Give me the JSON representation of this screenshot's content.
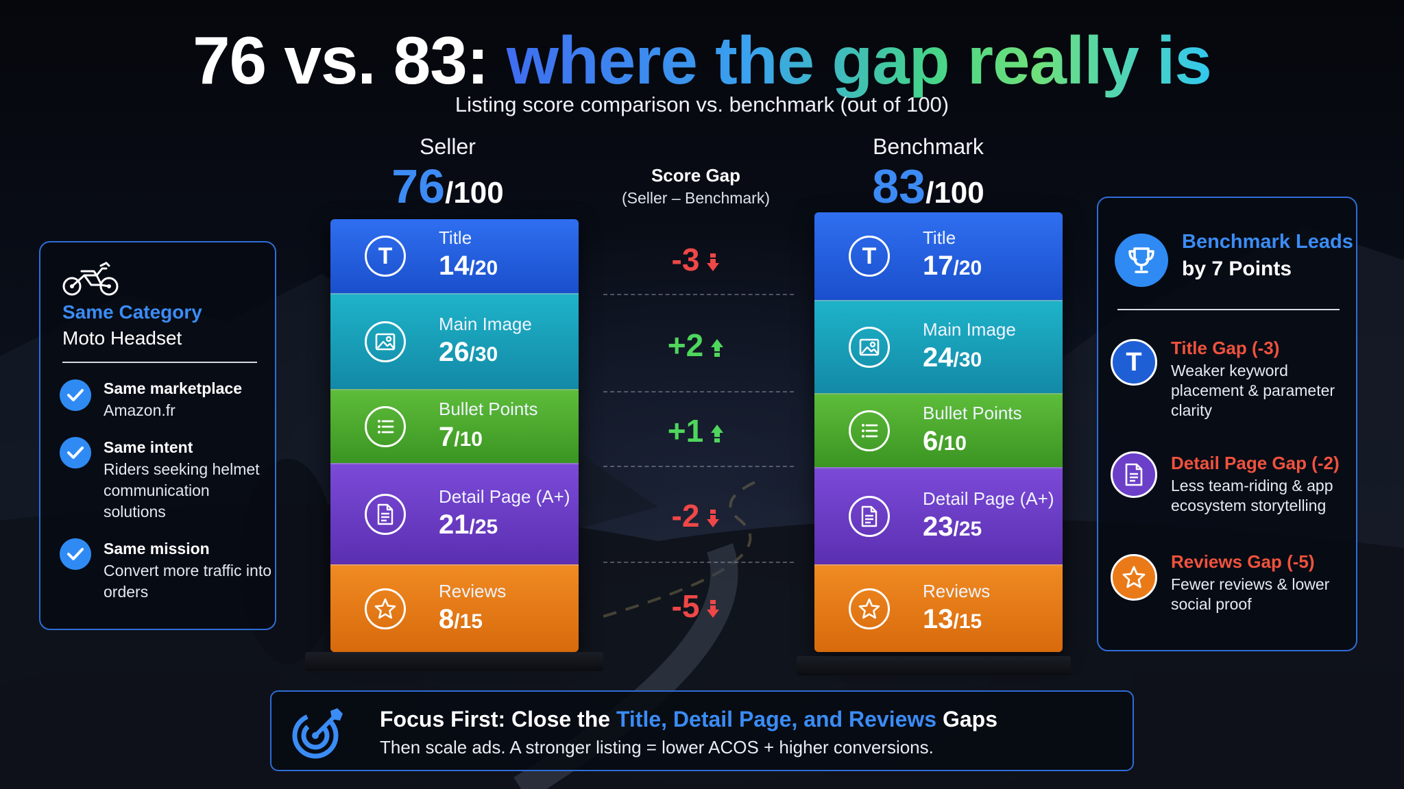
{
  "header": {
    "title_part1": "76 vs. 83:",
    "title_part2": "where the gap really is",
    "subtitle": "Listing score comparison vs. benchmark (out of 100)"
  },
  "seller": {
    "name": "Seller",
    "score": "76",
    "denominator": "/100"
  },
  "benchmark": {
    "name": "Benchmark",
    "score": "83",
    "denominator": "/100"
  },
  "gap_header": {
    "title": "Score Gap",
    "subtitle": "(Seller – Benchmark)"
  },
  "chart_data": {
    "type": "bar",
    "title": "76 vs. 83: where the gap really is",
    "subtitle": "Listing score comparison vs. benchmark (out of 100)",
    "categories": [
      "Title",
      "Main Image",
      "Bullet Points",
      "Detail Page (A+)",
      "Reviews"
    ],
    "max_points": [
      20,
      30,
      10,
      25,
      15
    ],
    "series": [
      {
        "name": "Seller",
        "values": [
          14,
          26,
          7,
          21,
          8
        ],
        "total": 76
      },
      {
        "name": "Benchmark",
        "values": [
          17,
          24,
          6,
          23,
          13
        ],
        "total": 83
      }
    ],
    "gaps": [
      "-3",
      "+2",
      "+1",
      "-2",
      "-5"
    ],
    "colors": {
      "Title": "#2563eb",
      "Main Image": "#17a2bb",
      "Bullet Points": "#4cab2e",
      "Detail Page (A+)": "#6b3fc8",
      "Reviews": "#ea7a18"
    }
  },
  "left_panel": {
    "icon": "motorcycle-icon",
    "category_label": "Same Category",
    "category_value": "Moto Headset",
    "items": [
      {
        "heading": "Same marketplace",
        "text": "Amazon.fr"
      },
      {
        "heading": "Same intent",
        "text": "Riders seeking helmet communication solutions"
      },
      {
        "heading": "Same mission",
        "text": "Convert more traffic into orders"
      }
    ]
  },
  "right_panel": {
    "icon": "trophy-icon",
    "lead_line1": "Benchmark Leads",
    "lead_line2": "by 7 Points",
    "gaps": [
      {
        "heading": "Title Gap (-3)",
        "text": "Weaker keyword placement & parameter clarity",
        "icon_color": "#1f5fd6"
      },
      {
        "heading": "Detail Page Gap (-2)",
        "text": "Less team-riding & app ecosystem storytelling",
        "icon_color": "#6b3fc8"
      },
      {
        "heading": "Reviews Gap (-5)",
        "text": "Fewer reviews & lower social proof",
        "icon_color": "#ea7a18"
      }
    ]
  },
  "focus": {
    "icon": "target-icon",
    "heading_pre": "Focus First: Close the",
    "heading_highlight": "Title, Detail Page, and Reviews",
    "heading_post": "Gaps",
    "text": "Then scale ads. A stronger listing = lower ACOS + higher conversions."
  }
}
